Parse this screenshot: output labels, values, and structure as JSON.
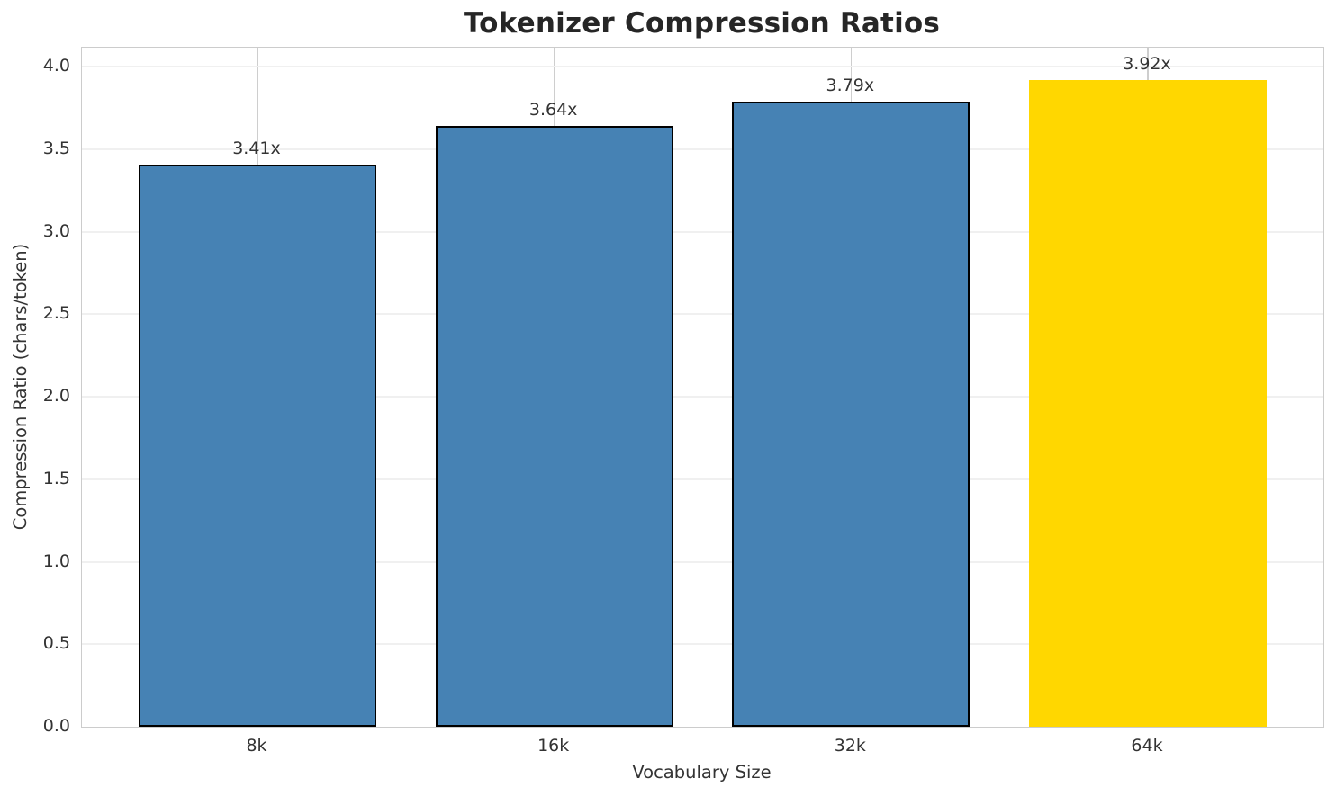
{
  "chart_data": {
    "type": "bar",
    "title": "Tokenizer Compression Ratios",
    "xlabel": "Vocabulary Size",
    "ylabel": "Compression Ratio (chars/token)",
    "categories": [
      "8k",
      "16k",
      "32k",
      "64k"
    ],
    "values": [
      3.41,
      3.64,
      3.79,
      3.92
    ],
    "bar_labels": [
      "3.41x",
      "3.64x",
      "3.79x",
      "3.92x"
    ],
    "bar_colors": [
      "#4682B4",
      "#4682B4",
      "#4682B4",
      "#FFD700"
    ],
    "bar_edge_colors": [
      "#000000",
      "#000000",
      "#000000",
      "none"
    ],
    "ylim": [
      0,
      4.116
    ],
    "yticks": [
      0.0,
      0.5,
      1.0,
      1.5,
      2.0,
      2.5,
      3.0,
      3.5,
      4.0
    ],
    "grid": true,
    "grid_color_horizontal": "#f0f0f0",
    "grid_color_vertical": "#cecece",
    "spine_color": "#cccccc",
    "title_color": "#262626",
    "text_color": "#333333",
    "legend": null
  }
}
